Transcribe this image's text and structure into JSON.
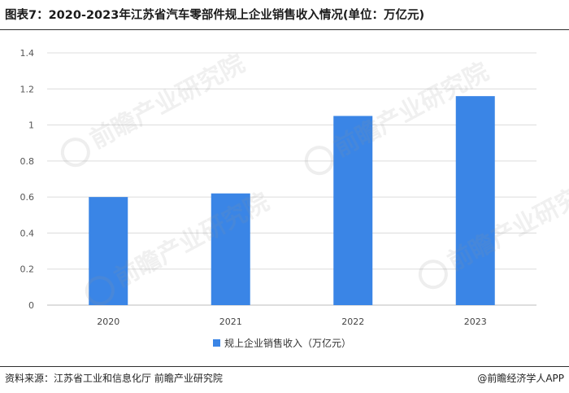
{
  "header": {
    "title": "图表7：2020-2023年江苏省汽车零部件规上企业销售收入情况(单位：万亿元)"
  },
  "footer": {
    "source": "资料来源：江苏省工业和信息化厅 前瞻产业研究院",
    "credit": "@前瞻经济学人APP"
  },
  "watermark": {
    "text": "前瞻产业研究院"
  },
  "chart_data": {
    "type": "bar",
    "categories": [
      "2020",
      "2021",
      "2022",
      "2023"
    ],
    "series": [
      {
        "name": "规上企业销售收入（万亿元）",
        "values": [
          0.6,
          0.62,
          1.05,
          1.16
        ]
      }
    ],
    "ylim": [
      0,
      1.4
    ],
    "yticks": [
      "0",
      "0.2",
      "0.4",
      "0.6",
      "0.8",
      "1",
      "1.2",
      "1.4"
    ],
    "grid": true,
    "legend": "bottom-center",
    "bar_color": "#3a85e6"
  }
}
